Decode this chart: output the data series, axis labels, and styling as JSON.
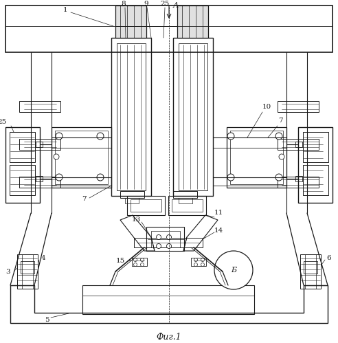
{
  "bg_color": "#ffffff",
  "line_color": "#1a1a1a",
  "fig_width": 4.92,
  "fig_height": 4.99,
  "dpi": 100,
  "caption": "Фиг.1",
  "arrow_label": "A"
}
